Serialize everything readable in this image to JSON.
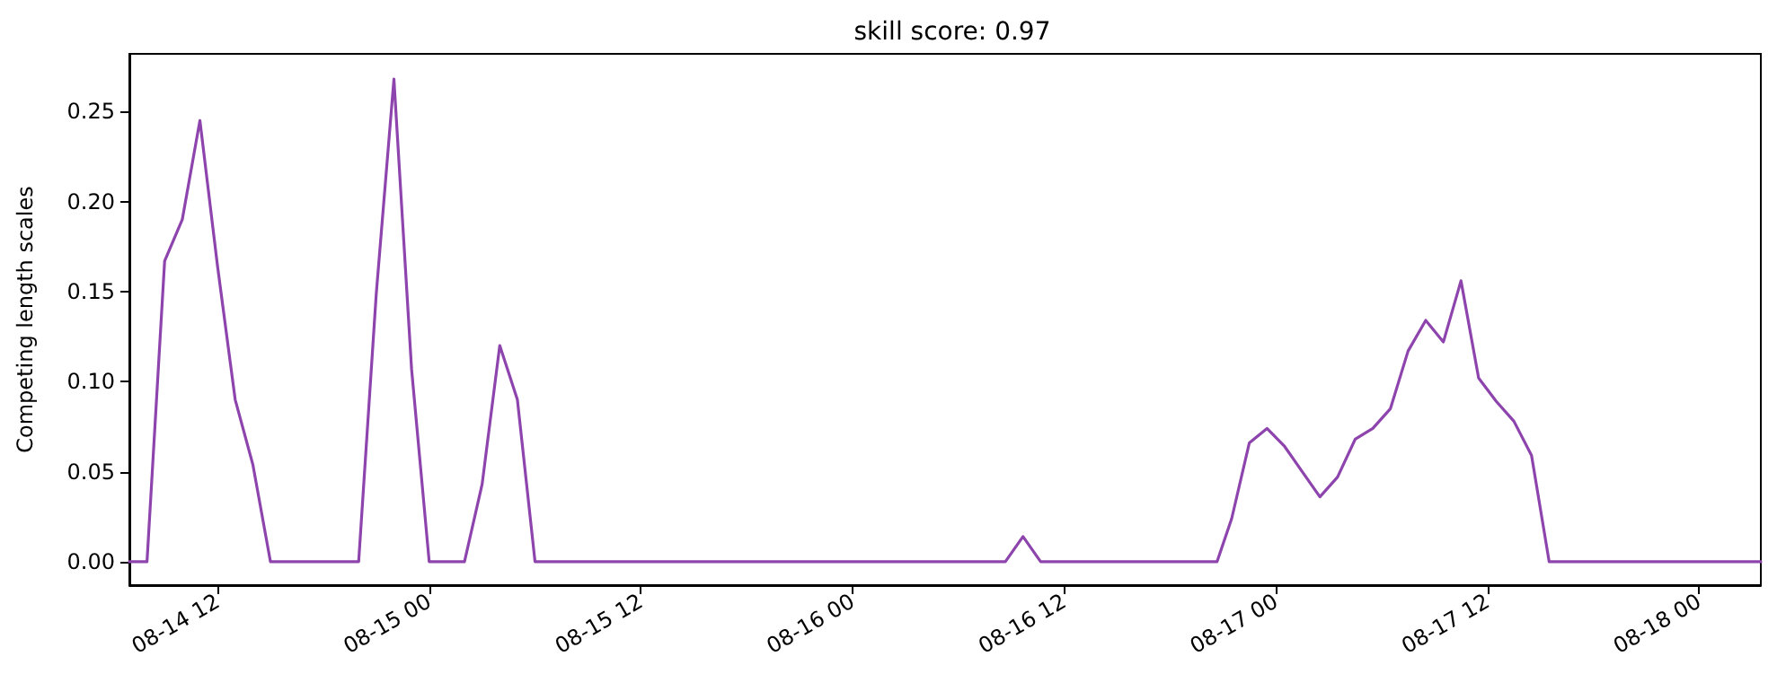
{
  "chart_data": {
    "type": "line",
    "title": "skill score: 0.97",
    "ylabel": "Competing length scales",
    "series": [
      {
        "color": "#8e44ad",
        "x": [
          "--08-14T07:00",
          "--08-14T08:00",
          "--08-14T09:00",
          "--08-14T10:00",
          "--08-14T11:00",
          "--08-14T12:00",
          "--08-14T13:00",
          "--08-14T14:00",
          "--08-14T15:00",
          "--08-14T20:00",
          "--08-14T21:00",
          "--08-14T22:00",
          "--08-14T23:00",
          "--08-15T00:00",
          "--08-15T02:00",
          "--08-15T03:00",
          "--08-15T04:00",
          "--08-15T05:00",
          "--08-15T06:00",
          "--08-16T08:40",
          "--08-16T09:40",
          "--08-16T10:40",
          "--08-16T20:40",
          "--08-16T21:30",
          "--08-16T22:30",
          "--08-16T23:30",
          "--08-17T00:30",
          "--08-17T01:30",
          "--08-17T02:30",
          "--08-17T03:30",
          "--08-17T04:30",
          "--08-17T05:30",
          "--08-17T06:30",
          "--08-17T07:30",
          "--08-17T08:30",
          "--08-17T09:30",
          "--08-17T10:30",
          "--08-17T11:30",
          "--08-17T12:30",
          "--08-17T13:30",
          "--08-17T14:30",
          "--08-17T15:30",
          "--08-18T03:30"
        ],
        "values": [
          0,
          0,
          0.167,
          0.19,
          0.245,
          0.164,
          0.09,
          0.054,
          0,
          0,
          0.149,
          0.268,
          0.107,
          0,
          0,
          0.043,
          0.12,
          0.09,
          0,
          0,
          0.014,
          0,
          0,
          0.024,
          0.066,
          0.074,
          0.064,
          0.05,
          0.036,
          0.047,
          0.068,
          0.074,
          0.085,
          0.117,
          0.134,
          0.122,
          0.156,
          0.102,
          0.089,
          0.078,
          0.059,
          0,
          0
        ]
      }
    ],
    "xlim": [
      "--08-14T07:00",
      "--08-18T03:30"
    ],
    "xticks": [
      {
        "value": "--08-14T12:00",
        "label": "08-14 12"
      },
      {
        "value": "--08-15T00:00",
        "label": "08-15 00"
      },
      {
        "value": "--08-15T12:00",
        "label": "08-15 12"
      },
      {
        "value": "--08-16T00:00",
        "label": "08-16 00"
      },
      {
        "value": "--08-16T12:00",
        "label": "08-16 12"
      },
      {
        "value": "--08-17T00:00",
        "label": "08-17 00"
      },
      {
        "value": "--08-17T12:00",
        "label": "08-17 12"
      },
      {
        "value": "--08-18T00:00",
        "label": "08-18 00"
      }
    ],
    "ylim": [
      -0.013,
      0.282
    ],
    "yticks": [
      {
        "value": 0,
        "label": "0.00"
      },
      {
        "value": 0.05,
        "label": "0.05"
      },
      {
        "value": 0.1,
        "label": "0.10"
      },
      {
        "value": 0.15,
        "label": "0.15"
      },
      {
        "value": 0.2,
        "label": "0.20"
      },
      {
        "value": 0.25,
        "label": "0.25"
      }
    ],
    "marker": "none",
    "line_style": "solid"
  }
}
